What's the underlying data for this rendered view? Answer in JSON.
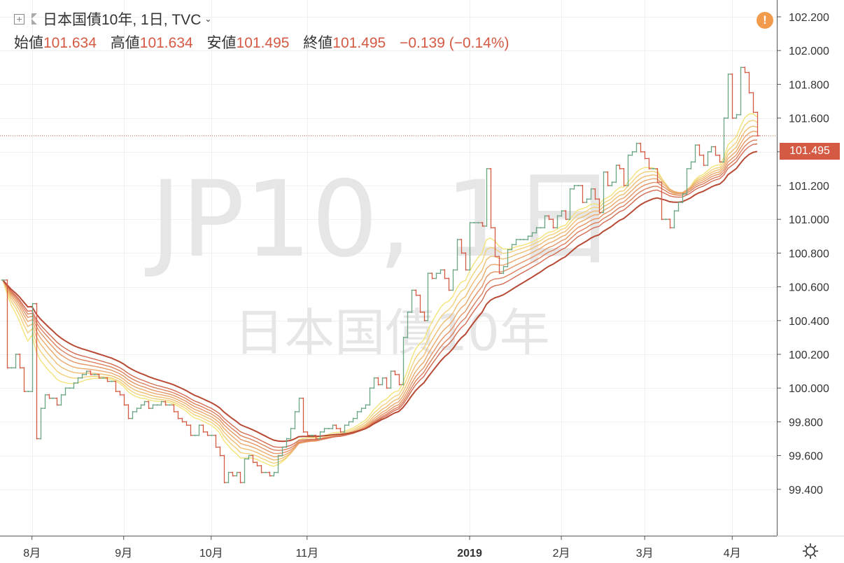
{
  "header": {
    "symbol": "日本国債10年, 1日, TVC",
    "open_label": "始値",
    "open": "101.634",
    "high_label": "高値",
    "high": "101.634",
    "low_label": "安値",
    "low": "101.495",
    "close_label": "終値",
    "close": "101.495",
    "change": "−0.139 (−0.14%)"
  },
  "watermark": {
    "main": "JP10, 1日",
    "sub": "日本国債10年"
  },
  "last_price_label": "101.495",
  "warning_icon": "!",
  "colors": {
    "up": "#6aa583",
    "down": "#d45a43",
    "grid": "#eef0f3"
  },
  "icons": [
    "plus-box-icon",
    "flag-icon",
    "chevron-down-icon",
    "warning-icon",
    "gear-icon"
  ],
  "chart_data": {
    "type": "ohlc",
    "ylim": [
      99.28,
      102.3
    ],
    "yticks": [
      99.4,
      99.6,
      99.8,
      100.0,
      100.2,
      100.4,
      100.6,
      100.8,
      101.0,
      101.2,
      101.4,
      101.6,
      101.8,
      102.0,
      102.2
    ],
    "ytick_labels": [
      "99.400",
      "99.600",
      "99.800",
      "100.000",
      "100.200",
      "100.400",
      "100.600",
      "100.800",
      "101.000",
      "101.200",
      "101.400",
      "101.600",
      "101.800",
      "102.000",
      "102.200"
    ],
    "xticks": [
      {
        "index": 7,
        "label": "8月",
        "bold": false
      },
      {
        "index": 29,
        "label": "9月",
        "bold": false
      },
      {
        "index": 50,
        "label": "10月",
        "bold": false
      },
      {
        "index": 73,
        "label": "11月",
        "bold": false
      },
      {
        "index": 112,
        "label": "2019",
        "bold": true
      },
      {
        "index": 134,
        "label": "2月",
        "bold": false
      },
      {
        "index": 154,
        "label": "3月",
        "bold": false
      },
      {
        "index": 175,
        "label": "4月",
        "bold": false
      }
    ],
    "closes": [
      100.64,
      100.12,
      100.12,
      100.2,
      100.12,
      99.98,
      99.98,
      100.5,
      99.7,
      99.88,
      99.96,
      99.94,
      99.94,
      99.9,
      99.96,
      100.0,
      100.0,
      100.03,
      100.06,
      100.08,
      100.1,
      100.08,
      100.08,
      100.06,
      100.06,
      100.04,
      100.04,
      99.98,
      99.96,
      99.9,
      99.82,
      99.86,
      99.88,
      99.9,
      99.92,
      99.88,
      99.9,
      99.9,
      99.92,
      99.9,
      99.9,
      99.86,
      99.82,
      99.8,
      99.78,
      99.72,
      99.72,
      99.78,
      99.74,
      99.72,
      99.72,
      99.65,
      99.6,
      99.44,
      99.5,
      99.48,
      99.5,
      99.44,
      99.58,
      99.6,
      99.56,
      99.54,
      99.5,
      99.5,
      99.48,
      99.5,
      99.6,
      99.65,
      99.7,
      99.76,
      99.86,
      99.94,
      99.74,
      99.72,
      99.72,
      99.7,
      99.74,
      99.76,
      99.76,
      99.78,
      99.76,
      99.74,
      99.78,
      99.8,
      99.82,
      99.86,
      99.88,
      99.9,
      100.0,
      100.06,
      100.02,
      100.06,
      100.0,
      100.1,
      100.08,
      100.02,
      100.3,
      100.45,
      100.58,
      100.55,
      100.45,
      100.4,
      100.68,
      100.65,
      100.68,
      100.7,
      100.65,
      100.58,
      100.7,
      100.88,
      100.8,
      100.7,
      100.98,
      100.98,
      100.98,
      100.96,
      101.3,
      100.95,
      100.78,
      100.68,
      100.72,
      100.82,
      100.85,
      100.88,
      100.88,
      100.88,
      100.9,
      100.92,
      100.95,
      100.95,
      101.02,
      101.0,
      100.95,
      101.02,
      101.05,
      101.0,
      101.18,
      101.2,
      101.2,
      101.1,
      101.12,
      101.18,
      101.12,
      101.04,
      101.28,
      101.2,
      101.22,
      101.32,
      101.3,
      101.2,
      101.38,
      101.4,
      101.45,
      101.4,
      101.36,
      101.3,
      101.3,
      101.22,
      101.0,
      101.0,
      100.95,
      101.05,
      101.1,
      101.15,
      101.3,
      101.34,
      101.44,
      101.38,
      101.32,
      101.4,
      101.43,
      101.38,
      101.34,
      101.6,
      101.86,
      101.6,
      101.62,
      101.9,
      101.87,
      101.75,
      101.634,
      101.495
    ]
  }
}
